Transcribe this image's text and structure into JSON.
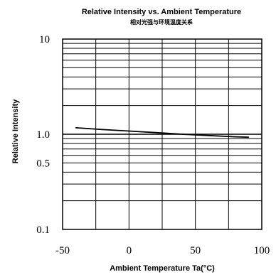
{
  "chart_data": {
    "type": "line",
    "title": "Relative Intensity vs. Ambient Temperature",
    "subtitle": "相对光强与环境温度关系",
    "xlabel": "Ambient Temperature Ta(°C)",
    "ylabel": "Relative Intensity",
    "xlim": [
      -50,
      100
    ],
    "ylim": [
      0.1,
      10
    ],
    "yscale": "log",
    "grid": true,
    "x_ticks": [
      -50,
      0,
      50,
      100
    ],
    "x_tick_labels": [
      "-50",
      "0",
      "50",
      "100"
    ],
    "y_ticks": [
      10,
      1.0,
      0.5,
      0.1
    ],
    "y_tick_labels": [
      "10",
      "1.0",
      "0.5",
      "0.1"
    ],
    "series": [
      {
        "x": [
          -40,
          -20,
          0,
          20,
          40,
          60,
          80,
          90
        ],
        "y": [
          1.17,
          1.12,
          1.08,
          1.04,
          1.0,
          0.97,
          0.94,
          0.93
        ]
      }
    ]
  }
}
